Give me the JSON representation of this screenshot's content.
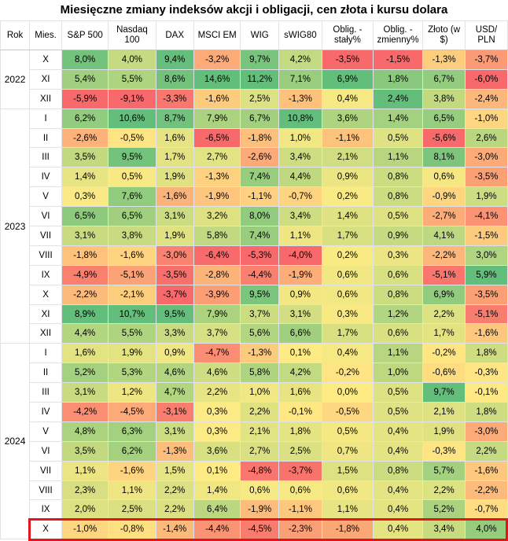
{
  "title": "Miesięczne zmiany indeksów akcji i obligacji, cen złota i kursu dolara",
  "columns": {
    "year": "Rok",
    "month": "Mies.",
    "series": [
      "S&P 500",
      "Nasdaq 100",
      "DAX",
      "MSCI EM",
      "WIG",
      "sWIG80",
      "Oblig. - stały%",
      "Oblig. - zmienny%",
      "Złoto (w $)",
      "USD/ PLN"
    ]
  },
  "highlight_color": "#e3141b",
  "color_scale": {
    "negative": "#f8696b",
    "neutral": "#ffeb84",
    "positive": "#63be7b"
  },
  "chart_data": {
    "type": "heatmap",
    "title": "Miesięczne zmiany indeksów akcji i obligacji, cen złota i kursu dolara",
    "columns": [
      "S&P 500",
      "Nasdaq 100",
      "DAX",
      "MSCI EM",
      "WIG",
      "sWIG80",
      "Oblig. - stały%",
      "Oblig. - zmienny%",
      "Złoto (w $)",
      "USD/ PLN"
    ],
    "unit": "%",
    "highlighted_row": "2024-X",
    "rows": [
      {
        "year": "2022",
        "month": "X",
        "values": [
          "8,0%",
          "4,0%",
          "9,4%",
          "-3,2%",
          "9,7%",
          "4,2%",
          "-3,5%",
          "-1,5%",
          "-1,3%",
          "-3,7%"
        ]
      },
      {
        "year": "2022",
        "month": "XI",
        "values": [
          "5,4%",
          "5,5%",
          "8,6%",
          "14,6%",
          "11,2%",
          "7,1%",
          "6,9%",
          "1,8%",
          "6,7%",
          "-6,0%"
        ]
      },
      {
        "year": "2022",
        "month": "XII",
        "values": [
          "-5,9%",
          "-9,1%",
          "-3,3%",
          "-1,6%",
          "2,5%",
          "-1,3%",
          "0,4%",
          "2,4%",
          "3,8%",
          "-2,4%"
        ]
      },
      {
        "year": "2023",
        "month": "I",
        "values": [
          "6,2%",
          "10,6%",
          "8,7%",
          "7,9%",
          "6,7%",
          "10,8%",
          "3,6%",
          "1,4%",
          "6,5%",
          "-1,0%"
        ]
      },
      {
        "year": "2023",
        "month": "II",
        "values": [
          "-2,6%",
          "-0,5%",
          "1,6%",
          "-6,5%",
          "-1,8%",
          "1,0%",
          "-1,1%",
          "0,5%",
          "-5,6%",
          "2,6%"
        ]
      },
      {
        "year": "2023",
        "month": "III",
        "values": [
          "3,5%",
          "9,5%",
          "1,7%",
          "2,7%",
          "-2,6%",
          "3,4%",
          "2,1%",
          "1,1%",
          "8,1%",
          "-3,0%"
        ]
      },
      {
        "year": "2023",
        "month": "IV",
        "values": [
          "1,4%",
          "0,5%",
          "1,9%",
          "-1,3%",
          "7,4%",
          "4,4%",
          "0,9%",
          "0,8%",
          "0,6%",
          "-3,5%"
        ]
      },
      {
        "year": "2023",
        "month": "V",
        "values": [
          "0,3%",
          "7,6%",
          "-1,6%",
          "-1,9%",
          "-1,1%",
          "-0,7%",
          "0,2%",
          "0,8%",
          "-0,9%",
          "1,9%"
        ]
      },
      {
        "year": "2023",
        "month": "VI",
        "values": [
          "6,5%",
          "6,5%",
          "3,1%",
          "3,2%",
          "8,0%",
          "3,4%",
          "1,4%",
          "0,5%",
          "-2,7%",
          "-4,1%"
        ]
      },
      {
        "year": "2023",
        "month": "VII",
        "values": [
          "3,1%",
          "3,8%",
          "1,9%",
          "5,8%",
          "7,4%",
          "1,1%",
          "1,7%",
          "0,9%",
          "4,1%",
          "-1,5%"
        ]
      },
      {
        "year": "2023",
        "month": "VIII",
        "values": [
          "-1,8%",
          "-1,6%",
          "-3,0%",
          "-6,4%",
          "-5,3%",
          "-4,0%",
          "0,2%",
          "0,3%",
          "-2,2%",
          "3,0%"
        ]
      },
      {
        "year": "2023",
        "month": "IX",
        "values": [
          "-4,9%",
          "-5,1%",
          "-3,5%",
          "-2,8%",
          "-4,4%",
          "-1,9%",
          "0,6%",
          "0,6%",
          "-5,1%",
          "5,9%"
        ]
      },
      {
        "year": "2023",
        "month": "X",
        "values": [
          "-2,2%",
          "-2,1%",
          "-3,7%",
          "-3,9%",
          "9,5%",
          "0,9%",
          "0,6%",
          "0,8%",
          "6,9%",
          "-3,5%"
        ]
      },
      {
        "year": "2023",
        "month": "XI",
        "values": [
          "8,9%",
          "10,7%",
          "9,5%",
          "7,9%",
          "3,7%",
          "3,1%",
          "0,3%",
          "1,2%",
          "2,2%",
          "-5,1%"
        ]
      },
      {
        "year": "2023",
        "month": "XII",
        "values": [
          "4,4%",
          "5,5%",
          "3,3%",
          "3,7%",
          "5,6%",
          "6,6%",
          "1,7%",
          "0,6%",
          "1,7%",
          "-1,6%"
        ]
      },
      {
        "year": "2024",
        "month": "I",
        "values": [
          "1,6%",
          "1,9%",
          "0,9%",
          "-4,7%",
          "-1,3%",
          "0,1%",
          "0,4%",
          "1,1%",
          "-0,2%",
          "1,8%"
        ]
      },
      {
        "year": "2024",
        "month": "II",
        "values": [
          "5,2%",
          "5,3%",
          "4,6%",
          "4,6%",
          "5,8%",
          "4,2%",
          "-0,2%",
          "1,0%",
          "-0,6%",
          "-0,3%"
        ]
      },
      {
        "year": "2024",
        "month": "III",
        "values": [
          "3,1%",
          "1,2%",
          "4,7%",
          "2,2%",
          "1,0%",
          "1,6%",
          "0,0%",
          "0,5%",
          "9,7%",
          "-0,1%"
        ]
      },
      {
        "year": "2024",
        "month": "IV",
        "values": [
          "-4,2%",
          "-4,5%",
          "-3,1%",
          "0,3%",
          "2,2%",
          "-0,1%",
          "-0,5%",
          "0,5%",
          "2,1%",
          "1,8%"
        ]
      },
      {
        "year": "2024",
        "month": "V",
        "values": [
          "4,8%",
          "6,3%",
          "3,1%",
          "0,3%",
          "2,1%",
          "1,8%",
          "0,5%",
          "0,4%",
          "1,9%",
          "-3,0%"
        ]
      },
      {
        "year": "2024",
        "month": "VI",
        "values": [
          "3,5%",
          "6,2%",
          "-1,3%",
          "3,6%",
          "2,7%",
          "2,5%",
          "0,7%",
          "0,4%",
          "-0,3%",
          "2,2%"
        ]
      },
      {
        "year": "2024",
        "month": "VII",
        "values": [
          "1,1%",
          "-1,6%",
          "1,5%",
          "0,1%",
          "-4,8%",
          "-3,7%",
          "1,5%",
          "0,8%",
          "5,7%",
          "-1,6%"
        ]
      },
      {
        "year": "2024",
        "month": "VIII",
        "values": [
          "2,3%",
          "1,1%",
          "2,2%",
          "1,4%",
          "0,6%",
          "0,6%",
          "0,6%",
          "0,4%",
          "2,2%",
          "-2,2%"
        ]
      },
      {
        "year": "2024",
        "month": "IX",
        "values": [
          "2,0%",
          "2,5%",
          "2,2%",
          "6,4%",
          "-1,9%",
          "-1,1%",
          "1,1%",
          "0,4%",
          "5,2%",
          "-0,7%"
        ]
      },
      {
        "year": "2024",
        "month": "X",
        "values": [
          "-1,0%",
          "-0,8%",
          "-1,4%",
          "-4,4%",
          "-4,5%",
          "-2,3%",
          "-1,8%",
          "0,4%",
          "3,4%",
          "4,0%"
        ]
      }
    ]
  }
}
